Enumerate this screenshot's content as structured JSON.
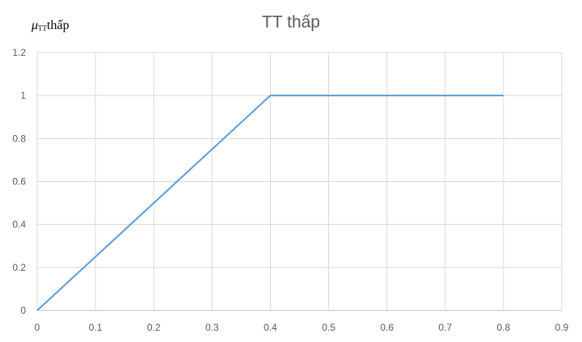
{
  "chart_data": {
    "type": "line",
    "title": "TT thấp",
    "ylabel": {
      "symbol": "μ",
      "subscript": "TT",
      "text": "thấp"
    },
    "xlabel": "",
    "xlim": [
      0,
      0.9
    ],
    "ylim": [
      0,
      1.2
    ],
    "x_ticks": [
      "0",
      "0.1",
      "0.2",
      "0.3",
      "0.4",
      "0.5",
      "0.6",
      "0.7",
      "0.8",
      "0.9"
    ],
    "y_ticks": [
      "0",
      "0.2",
      "0.4",
      "0.6",
      "0.8",
      "1",
      "1.2"
    ],
    "grid": true,
    "legend": "none",
    "series": [
      {
        "x": [
          0,
          0.4,
          0.8
        ],
        "y": [
          0,
          1,
          1
        ],
        "color": "#5B9BD5"
      }
    ]
  }
}
